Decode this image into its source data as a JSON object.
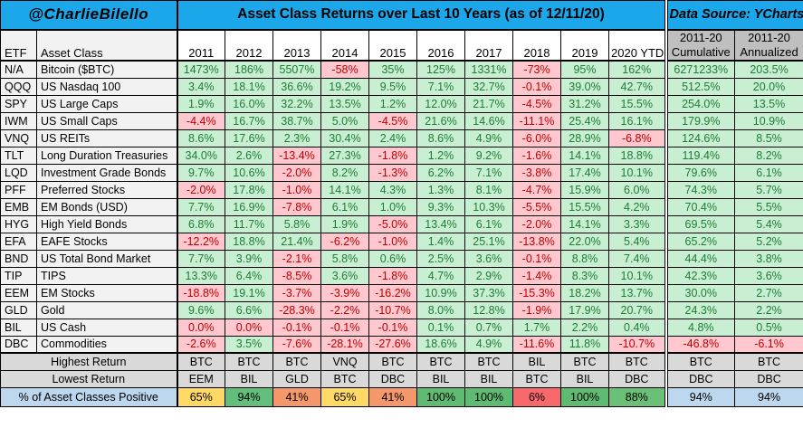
{
  "header": {
    "handle": "@CharlieBilello",
    "title": "Asset Class Returns over Last 10 Years (as of 12/11/20)",
    "source": "Data Source: YCharts"
  },
  "colors": {
    "banner_blue": "#1BA7E9",
    "positive_bg": "#C9EFD2",
    "positive_text": "#1E7B36",
    "negative_bg": "#FFC7CE",
    "negative_text": "#C00000",
    "label_bg": "#F2F2F2",
    "summary_grey": "#D9D9D9",
    "header_grey": "#BFBFBF",
    "light_blue": "#BDD7EE"
  },
  "chart_data": {
    "type": "table",
    "columns": {
      "etf": "ETF",
      "asset_class": "Asset Class",
      "years": [
        "2011",
        "2012",
        "2013",
        "2014",
        "2015",
        "2016",
        "2017",
        "2018",
        "2019",
        "2020 YTD"
      ],
      "cumulative": {
        "line1": "2011-20",
        "line2": "Cumulative"
      },
      "annualized": {
        "line1": "2011-20",
        "line2": "Annualized"
      }
    },
    "rows": [
      {
        "etf": "N/A",
        "asset_class": "Bitcoin ($BTC)",
        "values": [
          "1473%",
          "186%",
          "5507%",
          "-58%",
          "35%",
          "125%",
          "1331%",
          "-73%",
          "95%",
          "162%"
        ],
        "cumulative": "6271233%",
        "annualized": "203.5%"
      },
      {
        "etf": "QQQ",
        "asset_class": "US Nasdaq 100",
        "values": [
          "3.4%",
          "18.1%",
          "36.6%",
          "19.2%",
          "9.5%",
          "7.1%",
          "32.7%",
          "-0.1%",
          "39.0%",
          "42.7%"
        ],
        "cumulative": "512.5%",
        "annualized": "20.0%"
      },
      {
        "etf": "SPY",
        "asset_class": "US Large Caps",
        "values": [
          "1.9%",
          "16.0%",
          "32.2%",
          "13.5%",
          "1.2%",
          "12.0%",
          "21.7%",
          "-4.5%",
          "31.2%",
          "15.5%"
        ],
        "cumulative": "254.0%",
        "annualized": "13.5%"
      },
      {
        "etf": "IWM",
        "asset_class": "US Small Caps",
        "values": [
          "-4.4%",
          "16.7%",
          "38.7%",
          "5.0%",
          "-4.5%",
          "21.6%",
          "14.6%",
          "-11.1%",
          "25.4%",
          "16.1%"
        ],
        "cumulative": "179.9%",
        "annualized": "10.9%"
      },
      {
        "etf": "VNQ",
        "asset_class": "US REITs",
        "values": [
          "8.6%",
          "17.6%",
          "2.3%",
          "30.4%",
          "2.4%",
          "8.6%",
          "4.9%",
          "-6.0%",
          "28.9%",
          "-6.8%"
        ],
        "cumulative": "124.6%",
        "annualized": "8.5%"
      },
      {
        "etf": "TLT",
        "asset_class": "Long Duration Treasuries",
        "values": [
          "34.0%",
          "2.6%",
          "-13.4%",
          "27.3%",
          "-1.8%",
          "1.2%",
          "9.2%",
          "-1.6%",
          "14.1%",
          "18.8%"
        ],
        "cumulative": "119.4%",
        "annualized": "8.2%"
      },
      {
        "etf": "LQD",
        "asset_class": "Investment Grade Bonds",
        "values": [
          "9.7%",
          "10.6%",
          "-2.0%",
          "8.2%",
          "-1.3%",
          "6.2%",
          "7.1%",
          "-3.8%",
          "17.4%",
          "10.1%"
        ],
        "cumulative": "79.6%",
        "annualized": "6.1%"
      },
      {
        "etf": "PFF",
        "asset_class": "Preferred Stocks",
        "values": [
          "-2.0%",
          "17.8%",
          "-1.0%",
          "14.1%",
          "4.3%",
          "1.3%",
          "8.1%",
          "-4.7%",
          "15.9%",
          "6.0%"
        ],
        "cumulative": "74.3%",
        "annualized": "5.7%"
      },
      {
        "etf": "EMB",
        "asset_class": "EM Bonds (USD)",
        "values": [
          "7.7%",
          "16.9%",
          "-7.8%",
          "6.1%",
          "1.0%",
          "9.3%",
          "10.3%",
          "-5.5%",
          "15.5%",
          "4.2%"
        ],
        "cumulative": "70.4%",
        "annualized": "5.5%"
      },
      {
        "etf": "HYG",
        "asset_class": "High Yield Bonds",
        "values": [
          "6.8%",
          "11.7%",
          "5.8%",
          "1.9%",
          "-5.0%",
          "13.4%",
          "6.1%",
          "-2.0%",
          "14.1%",
          "3.3%"
        ],
        "cumulative": "69.5%",
        "annualized": "5.4%"
      },
      {
        "etf": "EFA",
        "asset_class": "EAFE Stocks",
        "values": [
          "-12.2%",
          "18.8%",
          "21.4%",
          "-6.2%",
          "-1.0%",
          "1.4%",
          "25.1%",
          "-13.8%",
          "22.0%",
          "5.4%"
        ],
        "cumulative": "65.2%",
        "annualized": "5.2%"
      },
      {
        "etf": "BND",
        "asset_class": "US Total Bond Market",
        "values": [
          "7.7%",
          "3.9%",
          "-2.1%",
          "5.8%",
          "0.6%",
          "2.5%",
          "3.6%",
          "-0.1%",
          "8.8%",
          "7.4%"
        ],
        "cumulative": "44.4%",
        "annualized": "3.8%"
      },
      {
        "etf": "TIP",
        "asset_class": "TIPS",
        "values": [
          "13.3%",
          "6.4%",
          "-8.5%",
          "3.6%",
          "-1.8%",
          "4.7%",
          "2.9%",
          "-1.4%",
          "8.3%",
          "10.1%"
        ],
        "cumulative": "42.3%",
        "annualized": "3.6%"
      },
      {
        "etf": "EEM",
        "asset_class": "EM Stocks",
        "values": [
          "-18.8%",
          "19.1%",
          "-3.7%",
          "-3.9%",
          "-16.2%",
          "10.9%",
          "37.3%",
          "-15.3%",
          "18.2%",
          "13.7%"
        ],
        "cumulative": "30.0%",
        "annualized": "2.7%"
      },
      {
        "etf": "GLD",
        "asset_class": "Gold",
        "values": [
          "9.6%",
          "6.6%",
          "-28.3%",
          "-2.2%",
          "-10.7%",
          "8.0%",
          "12.8%",
          "-1.9%",
          "17.9%",
          "20.7%"
        ],
        "cumulative": "24.3%",
        "annualized": "2.2%"
      },
      {
        "etf": "BIL",
        "asset_class": "US Cash",
        "values": [
          "0.0%",
          "0.0%",
          "-0.1%",
          "-0.1%",
          "-0.1%",
          "0.1%",
          "0.7%",
          "1.7%",
          "2.2%",
          "0.4%"
        ],
        "cumulative": "4.8%",
        "annualized": "0.5%"
      },
      {
        "etf": "DBC",
        "asset_class": "Commodities",
        "values": [
          "-2.6%",
          "3.5%",
          "-7.6%",
          "-28.1%",
          "-27.6%",
          "18.6%",
          "4.9%",
          "-11.6%",
          "11.8%",
          "-10.7%"
        ],
        "cumulative": "-46.8%",
        "annualized": "-6.1%"
      }
    ],
    "summary": {
      "highest_label": "Highest Return",
      "highest": [
        "BTC",
        "BTC",
        "BTC",
        "VNQ",
        "BTC",
        "BTC",
        "BTC",
        "BIL",
        "BTC",
        "BTC",
        "BTC",
        "BTC"
      ],
      "lowest_label": "Lowest Return",
      "lowest": [
        "EEM",
        "BIL",
        "GLD",
        "BTC",
        "DBC",
        "BIL",
        "BIL",
        "BTC",
        "BIL",
        "DBC",
        "DBC",
        "DBC"
      ],
      "pct_label": "% of Asset Classes Positive",
      "pct_positive": [
        "65%",
        "94%",
        "41%",
        "65%",
        "41%",
        "100%",
        "100%",
        "6%",
        "100%",
        "88%",
        "94%",
        "94%"
      ],
      "pct_colors": [
        "#FFD966",
        "#63BE7B",
        "#F4976A",
        "#FFD966",
        "#F4976A",
        "#5FBB72",
        "#5FBB72",
        "#F8696B",
        "#5FBB72",
        "#6BC077",
        "#BDD7EE",
        "#BDD7EE"
      ]
    }
  }
}
